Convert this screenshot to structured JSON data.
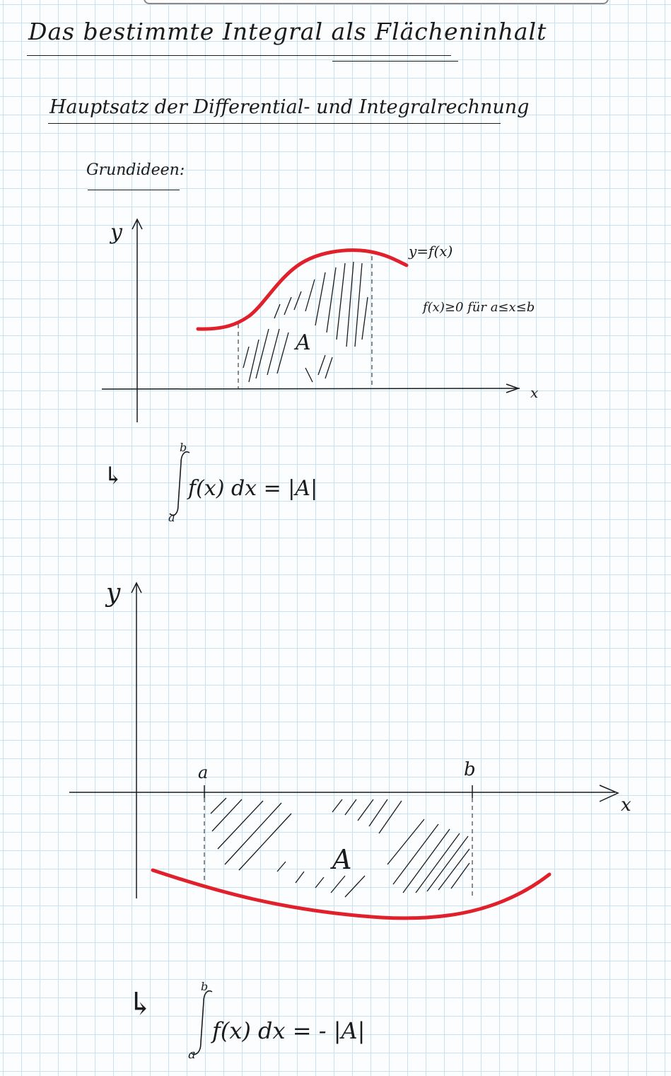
{
  "title": "Das bestimmte Integral als Flächeninhalt",
  "subtitle": "Hauptsatz der Differential- und Integralrechnung",
  "section_label": "Grundideen:",
  "curve_color": "#e0212b",
  "ink_color": "#1b1b1b",
  "sketch1": {
    "y_axis_label": "y",
    "x_axis_label": "x",
    "function_label": "y=f(x)",
    "condition": "f(x)≥0 für a≤x≤b",
    "area_label": "A",
    "result_arrow": "↳",
    "integral_upper": "b",
    "integral_lower": "a",
    "integral_expression": "f(x) dx = |A|"
  },
  "sketch2": {
    "y_axis_label": "y",
    "x_axis_label": "x",
    "a_label": "a",
    "b_label": "b",
    "area_label": "A",
    "result_arrow": "↳",
    "integral_upper": "b",
    "integral_lower": "a",
    "integral_expression": "f(x) dx = - |A|"
  }
}
